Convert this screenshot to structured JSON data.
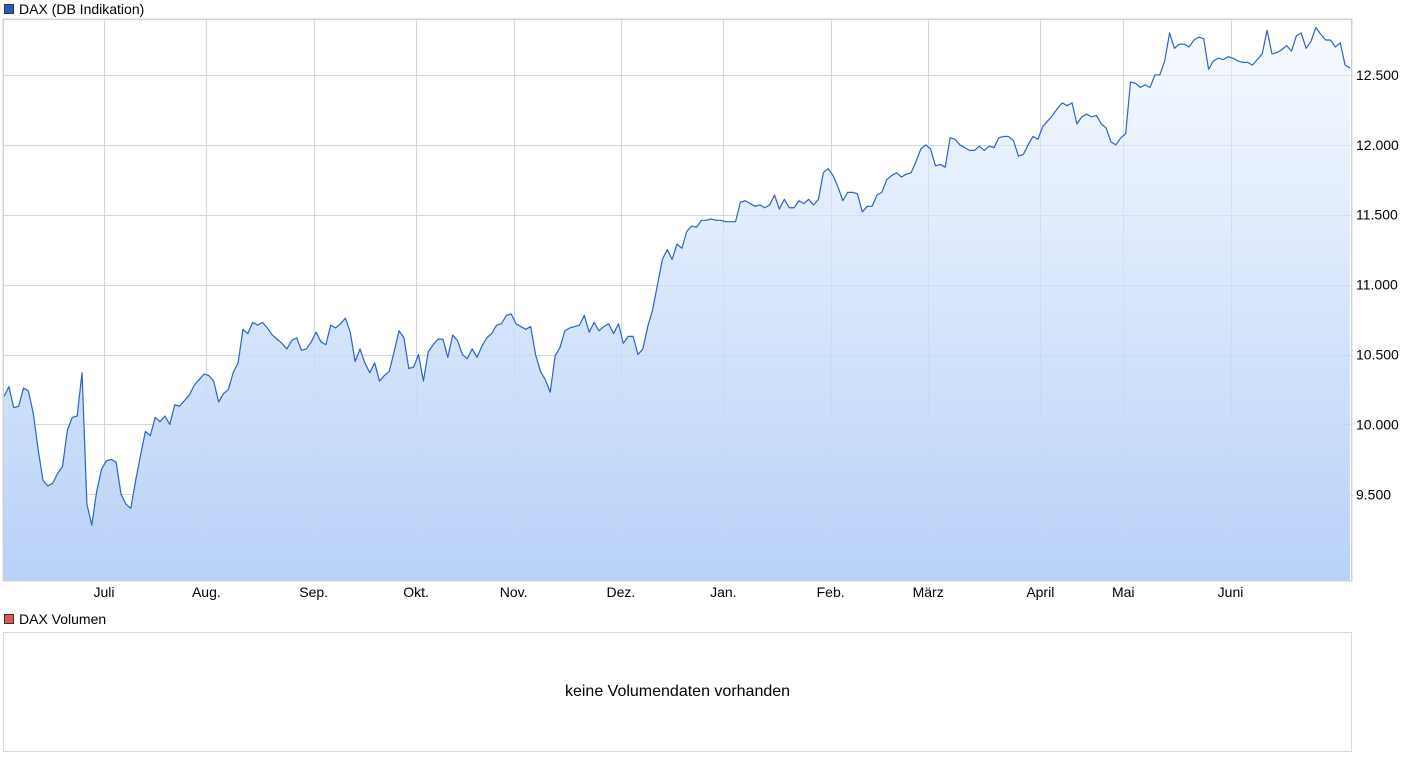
{
  "price_legend": {
    "label": "DAX (DB Indikation)",
    "color": "#1f5fbf"
  },
  "volume_legend": {
    "label": "DAX Volumen",
    "color": "#e05555"
  },
  "volume_message": "keine Volumendaten vorhanden",
  "chart_data": {
    "type": "area",
    "title": "DAX (DB Indikation)",
    "xlabel": "",
    "ylabel": "",
    "ylim": [
      8880,
      12900
    ],
    "grid": true,
    "line_color": "#2a64c5",
    "fill_top_color": "#f7faff",
    "fill_bottom_color": "#b8d1f8",
    "x_tick_labels": [
      "Juli",
      "Aug.",
      "Sep.",
      "Okt.",
      "Nov.",
      "Dez.",
      "Jan.",
      "Feb.",
      "März",
      "April",
      "Mai",
      "Juni"
    ],
    "x_tick_positions": [
      20.5,
      41.5,
      63.5,
      84.5,
      104.5,
      126.5,
      147.5,
      169.5,
      189.5,
      212.5,
      229.5,
      251.5
    ],
    "y_ticks": [
      9500,
      10000,
      10500,
      11000,
      11500,
      12000,
      12500
    ],
    "y_tick_labels": [
      "9.500",
      "10.000",
      "10.500",
      "11.000",
      "11.500",
      "12.000",
      "12.500"
    ],
    "series": [
      {
        "values": [
          10200,
          10270,
          10120,
          10130,
          10260,
          10240,
          10080,
          9820,
          9600,
          9560,
          9580,
          9650,
          9700,
          9960,
          10050,
          10060,
          10370,
          9430,
          9280,
          9520,
          9680,
          9740,
          9750,
          9730,
          9500,
          9430,
          9400,
          9600,
          9780,
          9950,
          9920,
          10050,
          10020,
          10060,
          10000,
          10140,
          10130,
          10170,
          10210,
          10280,
          10320,
          10360,
          10350,
          10310,
          10160,
          10220,
          10250,
          10370,
          10440,
          10680,
          10650,
          10730,
          10710,
          10730,
          10690,
          10640,
          10610,
          10580,
          10540,
          10600,
          10620,
          10530,
          10540,
          10590,
          10660,
          10590,
          10570,
          10710,
          10690,
          10720,
          10760,
          10660,
          10450,
          10540,
          10440,
          10370,
          10440,
          10310,
          10350,
          10380,
          10520,
          10670,
          10620,
          10400,
          10410,
          10500,
          10310,
          10520,
          10570,
          10610,
          10610,
          10480,
          10640,
          10600,
          10500,
          10470,
          10540,
          10480,
          10560,
          10620,
          10650,
          10710,
          10720,
          10780,
          10790,
          10720,
          10700,
          10680,
          10700,
          10500,
          10380,
          10320,
          10230,
          10490,
          10550,
          10670,
          10690,
          10700,
          10710,
          10780,
          10660,
          10730,
          10670,
          10700,
          10720,
          10650,
          10720,
          10580,
          10630,
          10630,
          10500,
          10540,
          10700,
          10820,
          11000,
          11180,
          11250,
          11180,
          11290,
          11260,
          11380,
          11420,
          11410,
          11460,
          11460,
          11470,
          11460,
          11460,
          11450,
          11450,
          11450,
          11590,
          11600,
          11580,
          11560,
          11570,
          11550,
          11570,
          11640,
          11540,
          11610,
          11550,
          11550,
          11600,
          11580,
          11610,
          11570,
          11610,
          11800,
          11830,
          11780,
          11700,
          11600,
          11660,
          11660,
          11650,
          11520,
          11560,
          11560,
          11640,
          11660,
          11750,
          11780,
          11800,
          11770,
          11790,
          11800,
          11880,
          11970,
          12000,
          11970,
          11850,
          11860,
          11840,
          12050,
          12040,
          12000,
          11980,
          11960,
          11960,
          11990,
          11960,
          11990,
          11980,
          12050,
          12060,
          12060,
          12030,
          11920,
          11930,
          12000,
          12060,
          12040,
          12130,
          12170,
          12210,
          12260,
          12300,
          12280,
          12300,
          12150,
          12200,
          12220,
          12200,
          12210,
          12150,
          12120,
          12020,
          12000,
          12050,
          12080,
          12450,
          12440,
          12410,
          12430,
          12410,
          12500,
          12500,
          12600,
          12800,
          12690,
          12720,
          12720,
          12700,
          12750,
          12770,
          12760,
          12540,
          12600,
          12620,
          12610,
          12630,
          12620,
          12600,
          12590,
          12590,
          12570,
          12610,
          12650,
          12820,
          12650,
          12660,
          12680,
          12710,
          12670,
          12780,
          12800,
          12690,
          12740,
          12840,
          12790,
          12750,
          12750,
          12700,
          12730,
          12570,
          12550
        ]
      }
    ]
  }
}
